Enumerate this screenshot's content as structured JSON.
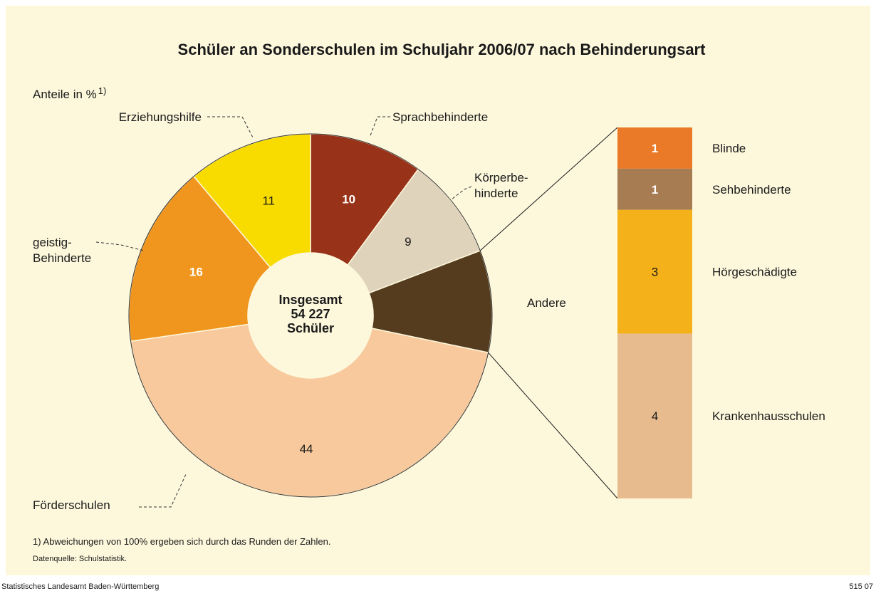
{
  "chart_data": {
    "type": "pie",
    "title": "Schüler an Sonderschulen im Schuljahr 2006/07 nach Behinderungsart",
    "subtitle": "Anteile in %",
    "subtitle_note": "1)",
    "center_label": [
      "Insgesamt",
      "54 227",
      "Schüler"
    ],
    "categories": [
      [
        "Sprachbehinderte"
      ],
      [
        "Körperbe-",
        "hinderte"
      ],
      [
        "Andere"
      ],
      [
        "Förderschulen"
      ],
      [
        "geistig-",
        "Behinderte"
      ],
      [
        "Erziehungshilfe"
      ]
    ],
    "values": [
      10,
      9,
      9,
      44,
      16,
      11
    ],
    "colors": [
      "#983219",
      "#e0d3bb",
      "#553c1f",
      "#f8c99d",
      "#f0961f",
      "#f8dc00"
    ],
    "value_label_colors": [
      "#ffffff",
      "#1a1a1a",
      null,
      "#1a1a1a",
      "#ffffff",
      "#1a1a1a"
    ],
    "breakdown": {
      "parent": 2,
      "categories": [
        "Blinde",
        "Sehbehinderte",
        "Hörgeschädigte",
        "Krankenhausschulen"
      ],
      "values": [
        1,
        1,
        3,
        4
      ],
      "colors": [
        "#ea7a27",
        "#a87c52",
        "#f5b11a",
        "#e8bb8f"
      ],
      "value_label_colors": [
        "#ffffff",
        "#ffffff",
        "#1a1a1a",
        "#1a1a1a"
      ]
    },
    "footnote": "1) Abweichungen von 100% ergeben sich durch das Runden der Zahlen.",
    "source": "Datenquelle: Schulstatistik.",
    "footer_left": "Statistisches Landesamt Baden-Württemberg",
    "footer_right": "515 07"
  }
}
